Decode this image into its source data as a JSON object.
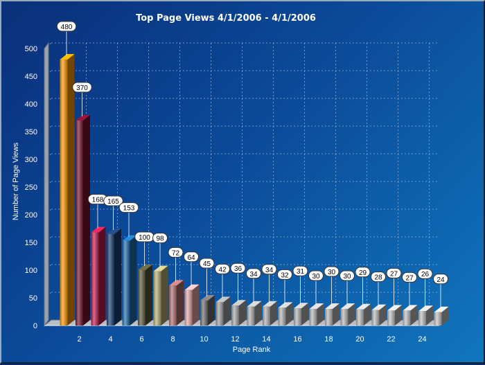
{
  "chart_data": {
    "type": "bar",
    "title": "Top Page Views 4/1/2006  - 4/1/2006",
    "xlabel": "Page Rank",
    "ylabel": "Number of Page Views",
    "ylim": [
      0,
      500
    ],
    "yticks": [
      0,
      50,
      100,
      150,
      200,
      250,
      300,
      350,
      400,
      450,
      500
    ],
    "xticks": [
      2,
      4,
      6,
      8,
      10,
      12,
      14,
      16,
      18,
      20,
      22,
      24
    ],
    "grid": true,
    "categories": [
      1,
      2,
      3,
      4,
      5,
      6,
      7,
      8,
      9,
      10,
      11,
      12,
      13,
      14,
      15,
      16,
      17,
      18,
      19,
      20,
      21,
      22,
      23,
      24,
      25
    ],
    "values": [
      480,
      370,
      168,
      165,
      153,
      100,
      98,
      72,
      64,
      45,
      42,
      36,
      34,
      34,
      32,
      31,
      30,
      30,
      30,
      29,
      28,
      27,
      27,
      26,
      24
    ],
    "colors": [
      "#ff9800",
      "#7a1230",
      "#c2204f",
      "#1f3f74",
      "#1f6fb0",
      "#5c5a3a",
      "#b8b07a",
      "#b07070",
      "#e8a8a8",
      "#707070",
      "#a0a0a0",
      "#a8a8a8",
      "#b0b0b0",
      "#b0b0b0",
      "#b4b4b4",
      "#b4b4b4",
      "#b8b8b8",
      "#b8b8b8",
      "#b8b8b8",
      "#bcbcbc",
      "#bcbcbc",
      "#c0c0c0",
      "#c0c0c0",
      "#c0c0c0",
      "#c4c4c4"
    ]
  }
}
